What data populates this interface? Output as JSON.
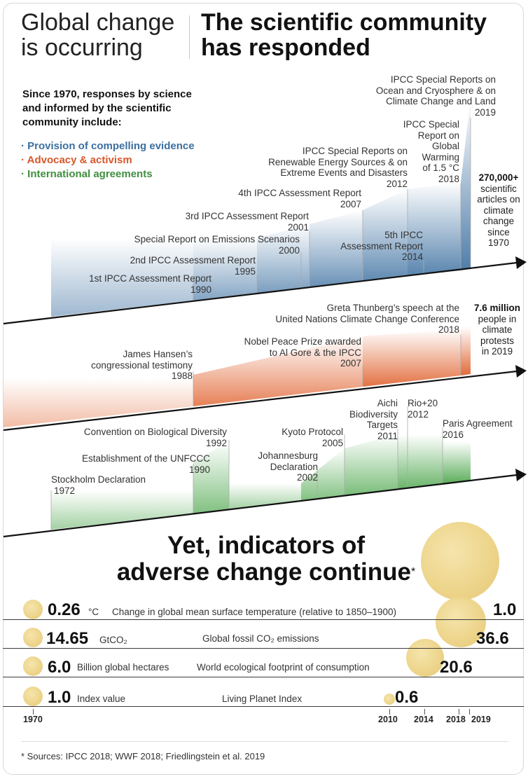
{
  "header": {
    "left_line1": "Global change",
    "left_line2": "is occurring",
    "right_line1": "The scientific community",
    "right_line2": "has responded"
  },
  "intro": {
    "line1": "Since 1970, responses by science",
    "line2": "and informed by the scientific",
    "line3": "community include:"
  },
  "bullets": {
    "b1": "· Provision of compelling evidence",
    "b2": "· Advocacy & activism",
    "b3": "· International agreements"
  },
  "colors": {
    "blue": "#3b6fa0",
    "orange": "#d9572a",
    "green": "#3f8f3f",
    "bubble": "#ecd386"
  },
  "science": {
    "e1_t": "1st IPCC Assessment Report",
    "e1_y": "1990",
    "e2_t": "2nd IPCC Assessment Report",
    "e2_y": "1995",
    "e3_t": "Special Report on Emissions Scenarios",
    "e3_y": "2000",
    "e4_t": "3rd IPCC Assessment Report",
    "e4_y": "2001",
    "e5_t": "4th IPCC Assessment Report",
    "e5_y": "2007",
    "e6_t1": "IPCC Special Reports on",
    "e6_t2": "Renewable Energy Sources & on",
    "e6_t3": "Extreme Events and Disasters",
    "e6_y": "2012",
    "e7_t1": "5th IPCC",
    "e7_t2": "Assessment Report",
    "e7_y": "2014",
    "e8_t1": "IPCC Special",
    "e8_t2": "Report on",
    "e8_t3": "Global",
    "e8_t4": "Warming",
    "e8_t5": "of 1.5 °C",
    "e8_y": "2018",
    "e9_t1": "IPCC Special Reports on",
    "e9_t2": "Ocean and Cryosphere & on",
    "e9_t3": "Climate Change and Land",
    "e9_y": "2019",
    "stat_v": "270,000+",
    "stat_1": "scientific",
    "stat_2": "articles on",
    "stat_3": "climate",
    "stat_4": "change",
    "stat_5": "since",
    "stat_6": "1970"
  },
  "advocacy": {
    "e1_t1": "James Hansen’s",
    "e1_t2": "congressional testimony",
    "e1_y": "1988",
    "e2_t1": "Nobel Peace Prize awarded",
    "e2_t2": "to Al Gore & the IPCC",
    "e2_y": "2007",
    "e3_t1": "Greta Thunberg’s speech at the",
    "e3_t2": "United Nations Climate Change Conference",
    "e3_y": "2018",
    "stat_v": "7.6 million",
    "stat_1": "people in",
    "stat_2": "climate",
    "stat_3": "protests",
    "stat_4": "in 2019"
  },
  "agreements": {
    "e1_t": "Stockholm Declaration",
    "e1_y": "1972",
    "e2_t": "Establishment of the UNFCCC",
    "e2_y": "1990",
    "e3_t": "Convention on Biological Diversity",
    "e3_y": "1992",
    "e4_t1": "Johannesburg",
    "e4_t2": "Declaration",
    "e4_y": "2002",
    "e5_t": "Kyoto Protocol",
    "e5_y": "2005",
    "e6_t1": "Aichi",
    "e6_t2": "Biodiversity",
    "e6_t3": "Targets",
    "e6_y": "2011",
    "e7_t": "Rio+20",
    "e7_y": "2012",
    "e8_t": "Paris Agreement",
    "e8_y": "2016"
  },
  "yet": {
    "line1": "Yet, indicators of",
    "line2": "adverse change continue",
    "star": "*"
  },
  "indicators": {
    "r1_v": "0.26",
    "r1_u": "°C",
    "r1_d": "Change in global mean surface temperature (relative to 1850–1900)",
    "r1_end": "1.0",
    "r2_v": "14.65",
    "r2_u": "GtCO₂",
    "r2_d": "Global fossil CO₂ emissions",
    "r2_end": "36.6",
    "r3_v": "6.0",
    "r3_u": "Billion global hectares",
    "r3_d": "World ecological footprint of consumption",
    "r3_end": "20.6",
    "r4_v": "1.0",
    "r4_u": "Index value",
    "r4_d": "Living Planet Index",
    "r4_end": "0.6"
  },
  "years": {
    "y1970": "1970",
    "y2010": "2010",
    "y2014": "2014",
    "y2018": "2018",
    "y2019": "2019"
  },
  "footnote": "* Sources: IPCC  2018; WWF 2018; Friedlingstein et al. 2019"
}
